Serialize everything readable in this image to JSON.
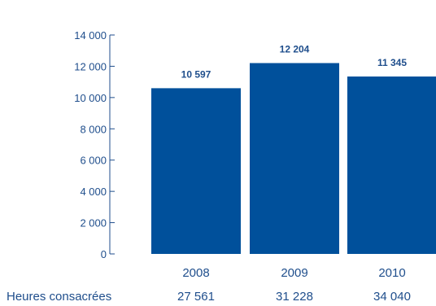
{
  "chart_data": {
    "type": "bar",
    "categories": [
      "2008",
      "2009",
      "2010"
    ],
    "values": [
      10597,
      12204,
      11345
    ],
    "value_labels": [
      "10 597",
      "12 204",
      "11 345"
    ],
    "ylim": [
      0,
      14000
    ],
    "y_ticks": [
      0,
      2000,
      4000,
      6000,
      8000,
      10000,
      12000,
      14000
    ],
    "y_tick_labels": [
      "0",
      "2 000",
      "4 000",
      "6 000",
      "8 000",
      "10 000",
      "12 000",
      "14 000"
    ],
    "grid": false,
    "bar_color": "#00509b",
    "text_color": "#1f4e8c",
    "title": "",
    "xlabel": "",
    "ylabel": "",
    "table_row": {
      "label": "Heures consacrées",
      "values": [
        "27 561",
        "31 228",
        "34 040"
      ]
    }
  }
}
